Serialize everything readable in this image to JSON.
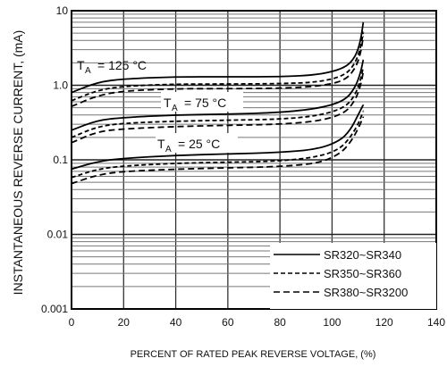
{
  "chart_data": {
    "type": "line",
    "title": "",
    "xlabel": "PERCENT OF RATED PEAK REVERSE VOLTAGE, (%)",
    "ylabel": "INSTANTANEOUS REVERSE CURRENT, (mA)",
    "x_ticks": [
      "0",
      "20",
      "40",
      "60",
      "80",
      "100",
      "120",
      "140"
    ],
    "y_ticks": [
      "0.001",
      "0.01",
      "0.1",
      "1.0",
      "10"
    ],
    "xlim": [
      0,
      140
    ],
    "ylim": [
      0.001,
      10
    ],
    "y_scale": "log",
    "grid": true,
    "legend_position": "bottom-right",
    "legend": [
      {
        "label": "SR320~SR340",
        "style": "solid"
      },
      {
        "label": "SR350~SR360",
        "style": "dashed"
      },
      {
        "label": "SR380~SR3200",
        "style": "dashed"
      }
    ],
    "annotations": [
      {
        "sub": "A",
        "temp": "= 125 °C"
      },
      {
        "sub": "A",
        "temp": "= 75 °C"
      },
      {
        "sub": "A",
        "temp": "= 25 °C"
      }
    ],
    "groups": [
      {
        "temperature": "125 °C",
        "series": [
          {
            "style": "solid",
            "x": [
              0,
              10,
              20,
              40,
              60,
              80,
              95,
              105,
              109,
              111,
              112
            ],
            "y": [
              0.8,
              1.1,
              1.22,
              1.3,
              1.3,
              1.3,
              1.38,
              1.7,
              2.4,
              4.0,
              7.0
            ]
          },
          {
            "style": "dashed",
            "x": [
              0,
              10,
              20,
              40,
              60,
              80,
              95,
              105,
              109,
              111,
              112
            ],
            "y": [
              0.62,
              0.86,
              0.97,
              1.04,
              1.04,
              1.05,
              1.1,
              1.35,
              2.0,
              3.2,
              5.2
            ]
          },
          {
            "style": "dashed",
            "x": [
              0,
              10,
              20,
              40,
              60,
              80,
              95,
              105,
              109,
              111,
              112
            ],
            "y": [
              0.52,
              0.73,
              0.84,
              0.9,
              0.9,
              0.91,
              0.97,
              1.15,
              1.7,
              2.7,
              4.5
            ]
          }
        ]
      },
      {
        "temperature": "75 °C",
        "series": [
          {
            "style": "solid",
            "x": [
              0,
              10,
              20,
              40,
              60,
              80,
              95,
              105,
              109,
              111,
              112
            ],
            "y": [
              0.25,
              0.34,
              0.37,
              0.4,
              0.41,
              0.43,
              0.49,
              0.62,
              0.95,
              1.5,
              2.2
            ]
          },
          {
            "style": "dashed",
            "x": [
              0,
              10,
              20,
              40,
              60,
              80,
              95,
              105,
              109,
              111,
              112
            ],
            "y": [
              0.2,
              0.28,
              0.31,
              0.33,
              0.34,
              0.35,
              0.39,
              0.5,
              0.75,
              1.2,
              1.75
            ]
          },
          {
            "style": "dashed",
            "x": [
              0,
              10,
              20,
              40,
              60,
              80,
              95,
              105,
              109,
              111,
              112
            ],
            "y": [
              0.17,
              0.24,
              0.26,
              0.28,
              0.29,
              0.3,
              0.33,
              0.42,
              0.64,
              1.0,
              1.5
            ]
          }
        ]
      },
      {
        "temperature": "25 °C",
        "series": [
          {
            "style": "solid",
            "x": [
              0,
              10,
              20,
              40,
              60,
              80,
              95,
              103,
              107,
              110,
              112
            ],
            "y": [
              0.075,
              0.095,
              0.105,
              0.115,
              0.12,
              0.125,
              0.14,
              0.18,
              0.25,
              0.4,
              0.55
            ]
          },
          {
            "style": "dashed",
            "x": [
              0,
              10,
              20,
              40,
              60,
              80,
              95,
              103,
              107,
              110,
              112
            ],
            "y": [
              0.058,
              0.075,
              0.083,
              0.09,
              0.093,
              0.096,
              0.11,
              0.14,
              0.2,
              0.3,
              0.45
            ]
          },
          {
            "style": "dashed",
            "x": [
              0,
              10,
              20,
              40,
              60,
              80,
              95,
              103,
              107,
              110,
              112
            ],
            "y": [
              0.048,
              0.063,
              0.07,
              0.075,
              0.078,
              0.081,
              0.09,
              0.12,
              0.17,
              0.26,
              0.38
            ]
          }
        ]
      }
    ]
  }
}
